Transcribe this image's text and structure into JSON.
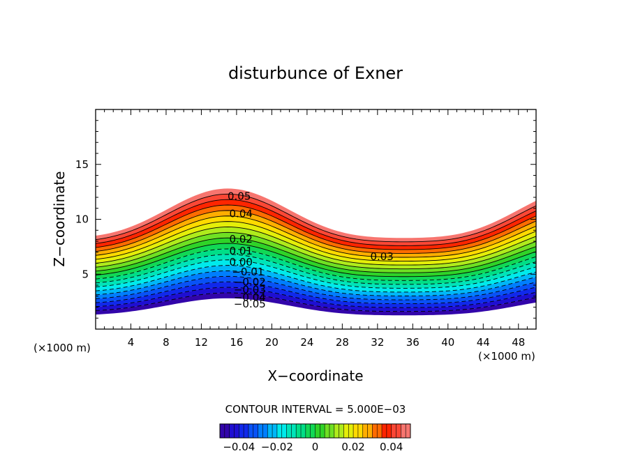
{
  "chart_data": {
    "type": "contour",
    "title": "disturbunce of Exner",
    "xlabel": "X−coordinate",
    "ylabel": "Z−coordinate",
    "x_unit_left": "(×1000 m)",
    "x_unit_right": "(×1000 m)",
    "xlim": [
      0,
      50
    ],
    "ylim": [
      0,
      20
    ],
    "x_ticks": [
      4,
      8,
      12,
      16,
      20,
      24,
      28,
      32,
      36,
      40,
      44,
      48
    ],
    "y_ticks": [
      5,
      10,
      15
    ],
    "contour_interval_text": "CONTOUR INTERVAL = 5.000E−03",
    "level_min": -0.05,
    "level_max": 0.05,
    "level_step": 0.005,
    "colorbar_ticks": [
      "−0.04",
      "−0.02",
      "0",
      "0.02",
      "0.04"
    ],
    "colorbar_tick_values": [
      -0.04,
      -0.02,
      0,
      0.02,
      0.04
    ],
    "contour_labels": [
      {
        "text": "0.05",
        "x": 16.3,
        "z": 12.1
      },
      {
        "text": "0.04",
        "x": 16.5,
        "z": 10.5
      },
      {
        "text": "0.03",
        "x": 32.5,
        "z": 6.6
      },
      {
        "text": "0.02",
        "x": 16.5,
        "z": 8.2
      },
      {
        "text": "0.01",
        "x": 16.5,
        "z": 7.1
      },
      {
        "text": "0.00",
        "x": 16.5,
        "z": 6.1
      },
      {
        "text": "−0.01",
        "x": 17.3,
        "z": 5.2
      },
      {
        "text": "−0.02",
        "x": 17.5,
        "z": 4.3
      },
      {
        "text": "−0.03",
        "x": 17.5,
        "z": 3.6
      },
      {
        "text": "−0.04",
        "x": 17.5,
        "z": 2.9
      },
      {
        "text": "−0.05",
        "x": 17.5,
        "z": 2.3
      }
    ]
  }
}
